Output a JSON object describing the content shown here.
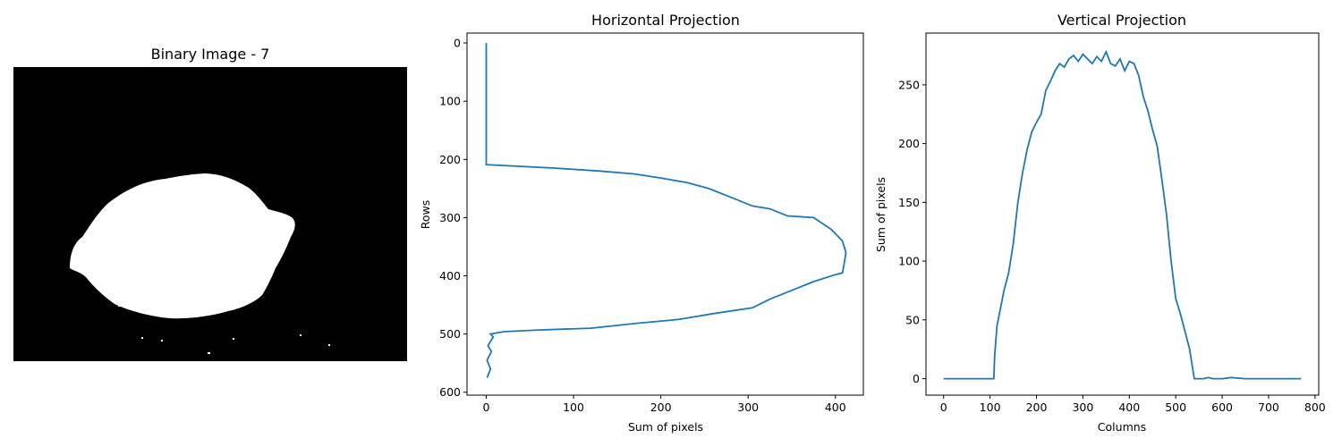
{
  "figure": {
    "background": "#ffffff",
    "line_color": "#1f77b4"
  },
  "panels": {
    "image": {
      "title": "Binary Image - 7"
    },
    "horizontal": {
      "title": "Horizontal Projection",
      "xlabel": "Sum of pixels",
      "ylabel": "Rows"
    },
    "vertical": {
      "title": "Vertical Projection",
      "xlabel": "Columns",
      "ylabel": "Sum of pixels"
    }
  },
  "chart_data": [
    {
      "type": "image",
      "title": "Binary Image - 7"
    },
    {
      "type": "line",
      "title": "Horizontal Projection",
      "xlabel": "Sum of pixels",
      "ylabel": "Rows",
      "xlim": [
        -22,
        432
      ],
      "ylim": [
        605,
        -17
      ],
      "y_inverted": true,
      "xticks": [
        0,
        100,
        200,
        300,
        400
      ],
      "yticks": [
        0,
        100,
        200,
        300,
        400,
        500,
        600
      ],
      "series": [
        {
          "x": [
            0,
            0,
            0,
            0,
            80,
            130,
            170,
            200,
            230,
            255,
            280,
            305,
            325,
            345,
            375,
            395,
            408,
            412,
            410,
            408,
            400,
            375,
            350,
            325,
            305,
            260,
            220,
            170,
            120,
            60,
            20,
            5,
            8,
            2,
            6,
            1,
            5,
            1
          ],
          "y": [
            0,
            100,
            200,
            209,
            215,
            220,
            225,
            232,
            240,
            250,
            265,
            280,
            285,
            297,
            300,
            320,
            340,
            360,
            380,
            395,
            398,
            410,
            425,
            440,
            455,
            465,
            475,
            482,
            490,
            493,
            496,
            500,
            505,
            520,
            530,
            545,
            560,
            575
          ]
        }
      ]
    },
    {
      "type": "line",
      "title": "Vertical Projection",
      "xlabel": "Columns",
      "ylabel": "Sum of pixels",
      "xlim": [
        -38,
        808
      ],
      "ylim": [
        -14,
        294
      ],
      "xticks": [
        0,
        100,
        200,
        300,
        400,
        500,
        600,
        700,
        800
      ],
      "yticks": [
        0,
        50,
        100,
        150,
        200,
        250
      ],
      "series": [
        {
          "x": [
            0,
            108,
            110,
            115,
            120,
            130,
            140,
            150,
            160,
            170,
            180,
            190,
            200,
            210,
            220,
            230,
            240,
            250,
            260,
            270,
            280,
            290,
            300,
            310,
            320,
            330,
            340,
            350,
            360,
            370,
            380,
            390,
            400,
            410,
            420,
            430,
            440,
            450,
            460,
            470,
            480,
            490,
            500,
            510,
            520,
            530,
            540,
            550,
            560,
            570,
            580,
            600,
            620,
            650,
            700,
            770
          ],
          "y": [
            0,
            0,
            20,
            45,
            55,
            75,
            90,
            115,
            150,
            175,
            195,
            210,
            218,
            225,
            245,
            253,
            262,
            268,
            265,
            272,
            275,
            270,
            276,
            272,
            268,
            274,
            270,
            278,
            268,
            266,
            272,
            262,
            270,
            268,
            258,
            240,
            228,
            212,
            198,
            170,
            140,
            100,
            68,
            55,
            40,
            25,
            0,
            0,
            0,
            1,
            0,
            0,
            1,
            0,
            0,
            0
          ]
        }
      ]
    }
  ]
}
